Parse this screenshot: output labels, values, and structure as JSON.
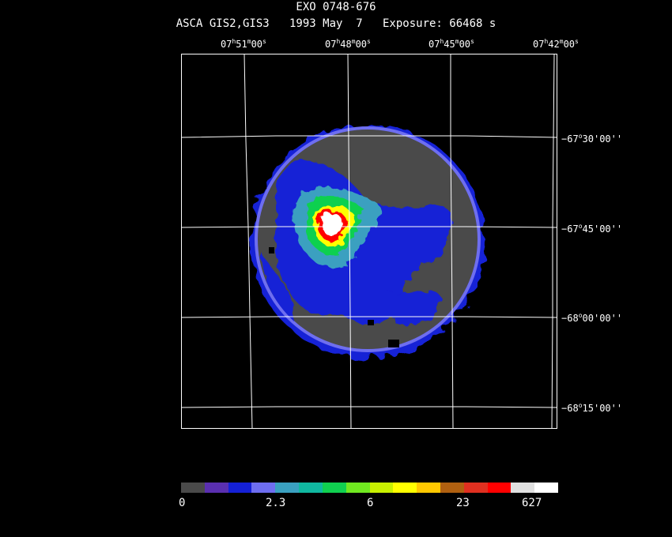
{
  "header": {
    "title": "EXO 0748-676",
    "subtitle": "ASCA GIS2,GIS3   1993 May  7   Exposure: 66468 s"
  },
  "ra_labels": [
    {
      "h": "07",
      "m": "51",
      "s": "00"
    },
    {
      "h": "07",
      "m": "48",
      "s": "00"
    },
    {
      "h": "07",
      "m": "45",
      "s": "00"
    },
    {
      "h": "07",
      "m": "42",
      "s": "00"
    }
  ],
  "dec_labels": [
    {
      "deg": "−67",
      "min": "30",
      "sec": "00"
    },
    {
      "deg": "−67",
      "min": "45",
      "sec": "00"
    },
    {
      "deg": "−68",
      "min": "00",
      "sec": "00"
    },
    {
      "deg": "−68",
      "min": "15",
      "sec": "00"
    }
  ],
  "colorbar": {
    "colors": [
      "#4a4a4a",
      "#5a2fb0",
      "#1420d6",
      "#6e6ef0",
      "#3aa0c0",
      "#10b8a0",
      "#10d050",
      "#70e820",
      "#c8f000",
      "#ffff00",
      "#ffc800",
      "#b06010",
      "#e03020",
      "#ff0000",
      "#e0e0e0",
      "#ffffff"
    ],
    "tick_labels": [
      "0",
      "2.3",
      "6",
      "23",
      "627"
    ]
  },
  "image_colors": {
    "background": "#000000",
    "grid": "#ffffff",
    "diffuse": "#4a4a4a",
    "rim": "#6e6ef0",
    "low": "#1420d6",
    "cyan": "#3aa0c0",
    "green": "#10d050",
    "yellow": "#ffff00",
    "red": "#ff0000",
    "peak": "#ffffff"
  }
}
